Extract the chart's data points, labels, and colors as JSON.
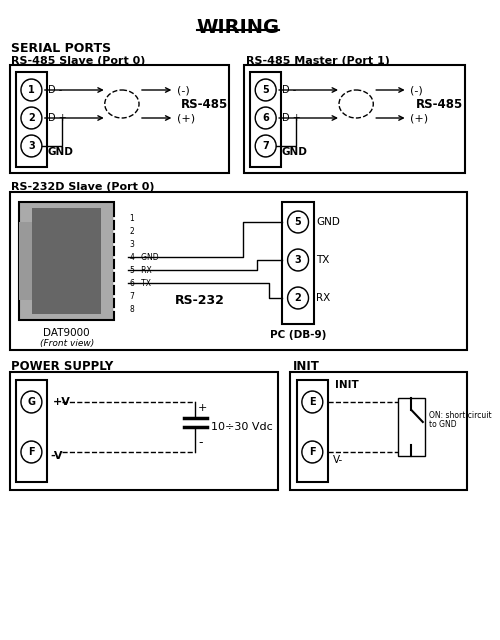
{
  "title": "WIRING",
  "bg_color": "#ffffff",
  "text_color": "#000000",
  "sections": {
    "serial_ports_label": "SERIAL PORTS",
    "rs485_slave_label": "RS-485 Slave (Port 0)",
    "rs485_master_label": "RS-485 Master (Port 1)",
    "rs232_label": "RS-232D Slave (Port 0)",
    "power_label": "POWER SUPPLY",
    "init_label": "INIT"
  }
}
